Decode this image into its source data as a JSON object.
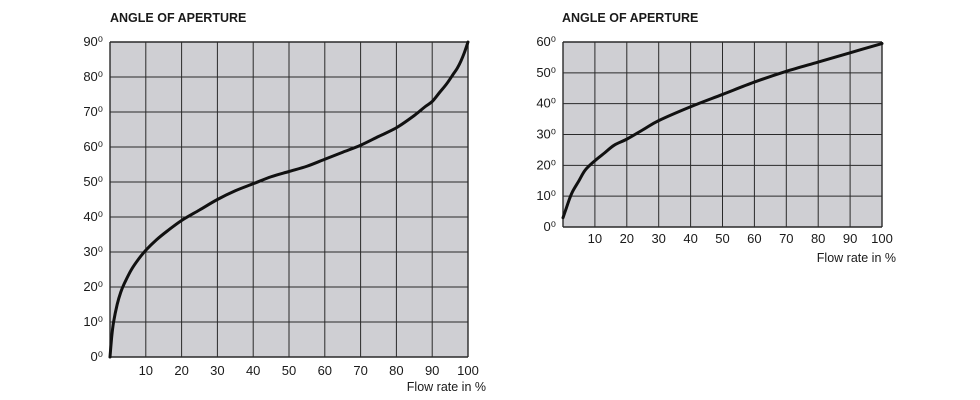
{
  "chart_data": [
    {
      "type": "line",
      "title": "ANGLE OF APERTURE",
      "xlabel": "Flow rate in %",
      "ylabel": "",
      "xlim": [
        0,
        100
      ],
      "ylim": [
        0,
        90
      ],
      "x_ticks": [
        "10",
        "20",
        "30",
        "40",
        "50",
        "60",
        "70",
        "80",
        "90",
        "100"
      ],
      "y_ticks": [
        "0⁰",
        "10⁰",
        "20⁰",
        "30⁰",
        "40⁰",
        "50⁰",
        "60⁰",
        "70⁰",
        "80⁰",
        "90⁰"
      ],
      "grid": true,
      "colors": {
        "plot_bg": "#cfcfd3",
        "grid": "#2a2a2a",
        "line": "#111111"
      },
      "series": [
        {
          "x": [
            0,
            0.5,
            1,
            2,
            3,
            4,
            6,
            8,
            10,
            13,
            16,
            20,
            25,
            30,
            35,
            40,
            45,
            50,
            55,
            60,
            65,
            70,
            75,
            80,
            85,
            88,
            90,
            92,
            94,
            96,
            97,
            98,
            99,
            100
          ],
          "y": [
            0,
            6,
            10,
            15,
            18.5,
            21,
            25,
            28,
            30.5,
            33.5,
            36,
            39,
            42,
            45,
            47.5,
            49.5,
            51.5,
            53,
            54.5,
            56.5,
            58.5,
            60.5,
            63,
            65.5,
            69,
            71.5,
            73,
            75.5,
            78,
            81,
            82.5,
            84.5,
            87,
            90
          ]
        }
      ]
    },
    {
      "type": "line",
      "title": "ANGLE OF APERTURE",
      "xlabel": "Flow rate in %",
      "ylabel": "",
      "xlim": [
        0,
        100
      ],
      "ylim": [
        0,
        60
      ],
      "x_ticks": [
        "10",
        "20",
        "30",
        "40",
        "50",
        "60",
        "70",
        "80",
        "90",
        "100"
      ],
      "y_ticks": [
        "0⁰",
        "10⁰",
        "20⁰",
        "30⁰",
        "40⁰",
        "50⁰",
        "60⁰"
      ],
      "grid": true,
      "colors": {
        "plot_bg": "#cfcfd3",
        "grid": "#2a2a2a",
        "line": "#111111"
      },
      "series": [
        {
          "x": [
            0,
            1,
            2,
            3,
            5,
            7,
            10,
            13,
            16,
            20,
            25,
            30,
            40,
            50,
            60,
            70,
            80,
            90,
            100
          ],
          "y": [
            3,
            6,
            9,
            11.5,
            15,
            18.5,
            21.5,
            24,
            26.5,
            28.5,
            31.5,
            34.5,
            39,
            43,
            47,
            50.5,
            53.5,
            56.5,
            59.5
          ]
        }
      ]
    }
  ]
}
